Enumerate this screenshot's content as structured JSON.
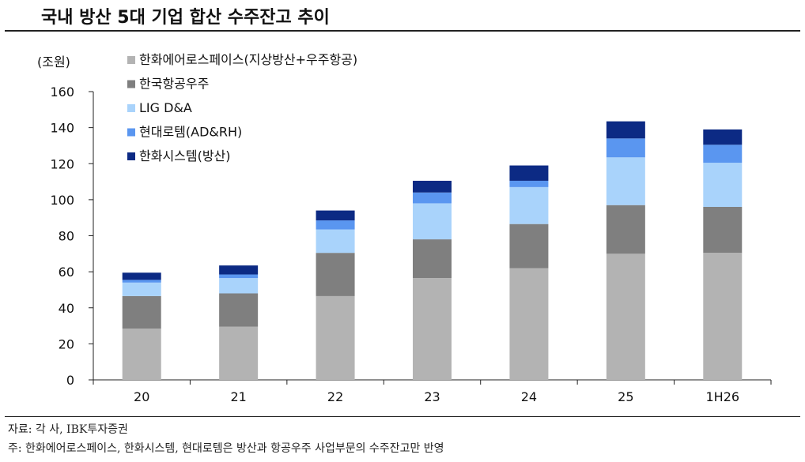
{
  "title": "국내 방산 5대 기업 합산 수주잔고 추이",
  "source": "자료: 각 사, IBK투자증권",
  "footnote": "주: 한화에어로스페이스, 한화시스템, 현대로템은 방산과 항공우주 사업부문의 수주잔고만 반영",
  "chart_data": {
    "type": "bar",
    "stacked": true,
    "ylabel": "(조원)",
    "ylim": [
      0,
      160
    ],
    "yticks": [
      0,
      20,
      40,
      60,
      80,
      100,
      120,
      140,
      160
    ],
    "grid": false,
    "legend_position": "top-left",
    "categories": [
      "20",
      "21",
      "22",
      "23",
      "24",
      "25",
      "1H26"
    ],
    "series": [
      {
        "name": "한화에어로스페이스(지상방산+우주항공)",
        "color": "#b3b3b3",
        "values": [
          28.5,
          29.5,
          46.5,
          56.5,
          62,
          70,
          70.5
        ]
      },
      {
        "name": "한국항공우주",
        "color": "#7f7f7f",
        "values": [
          18,
          18.5,
          24,
          21.5,
          24.5,
          27,
          25.5
        ]
      },
      {
        "name": "LIG D&A",
        "color": "#a9d3fb",
        "values": [
          7.5,
          8.5,
          13,
          20,
          20.5,
          26.5,
          24.5
        ]
      },
      {
        "name": "현대로템(AD&RH)",
        "color": "#5a96f0",
        "values": [
          1.5,
          2,
          5,
          6,
          3.5,
          10.5,
          10
        ]
      },
      {
        "name": "한화시스템(방산)",
        "color": "#0c2a84",
        "values": [
          4,
          5,
          5.5,
          6.5,
          8.5,
          9.5,
          8.5
        ]
      }
    ]
  }
}
